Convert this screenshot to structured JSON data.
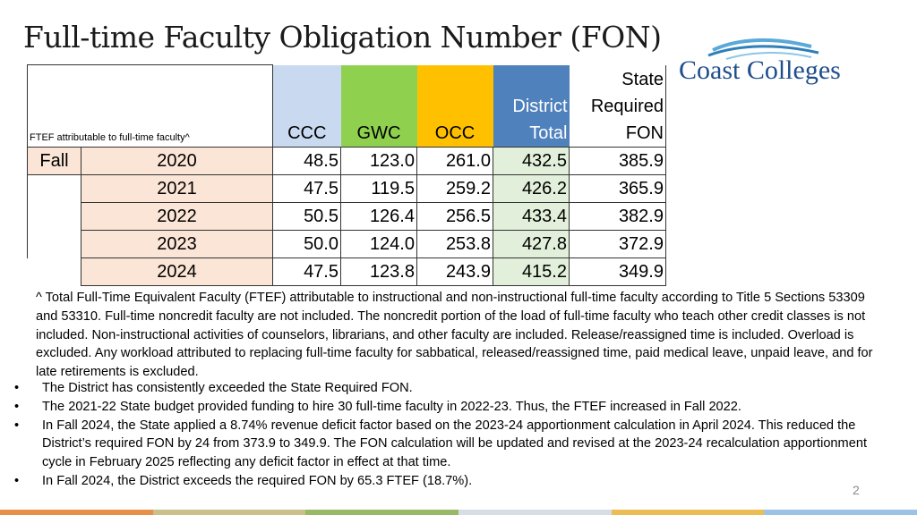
{
  "title": "Full-time Faculty Obligation Number (FON)",
  "logo_text": "Coast Colleges",
  "table": {
    "label_header": "FTEF attributable to full-time faculty^",
    "headers": {
      "ccc": "CCC",
      "gwc": "GWC",
      "occ": "OCC",
      "district": [
        "District",
        "Total"
      ],
      "state": [
        "State",
        "Required",
        "FON"
      ]
    },
    "term": "Fall",
    "rows": [
      {
        "year": "2020",
        "ccc": "48.5",
        "gwc": "123.0",
        "occ": "261.0",
        "district": "432.5",
        "state": "385.9"
      },
      {
        "year": "2021",
        "ccc": "47.5",
        "gwc": "119.5",
        "occ": "259.2",
        "district": "426.2",
        "state": "365.9"
      },
      {
        "year": "2022",
        "ccc": "50.5",
        "gwc": "126.4",
        "occ": "256.5",
        "district": "433.4",
        "state": "382.9"
      },
      {
        "year": "2023",
        "ccc": "50.0",
        "gwc": "124.0",
        "occ": "253.8",
        "district": "427.8",
        "state": "372.9"
      },
      {
        "year": "2024",
        "ccc": "47.5",
        "gwc": "123.8",
        "occ": "243.9",
        "district": "415.2",
        "state": "349.9"
      }
    ]
  },
  "footnote": "^ Total Full-Time Equivalent Faculty (FTEF) attributable to instructional and non-instructional full-time faculty according to Title 5 Sections 53309 and 53310. Full-time noncredit faculty are not included. The noncredit portion of the load of full-time faculty who teach other credit classes is not included. Non-instructional activities of counselors, librarians, and other faculty are included. Release/reassigned time is included. Overload is excluded. Any workload attributed to replacing full-time faculty for sabbatical, released/reassigned time, paid medical leave, unpaid leave, and for late retirements is excluded.",
  "bullets": [
    "The District has consistently exceeded the State Required FON.",
    "The 2021-22 State budget provided funding to hire 30 full-time faculty in 2022-23. Thus, the FTEF increased in Fall 2022.",
    "In Fall 2024, the State applied a 8.74% revenue deficit factor based on the 2023-24 apportionment calculation in April 2024. This reduced the District’s required FON by 24 from 373.9 to 349.9. The FON calculation will be updated and revised at the 2023-24 recalculation apportionment cycle in February 2025 reflecting any deficit factor in effect at that time.",
    "In Fall 2024, the District exceeds the required FON by 65.3 FTEF (18.7%)."
  ],
  "bullet_char": "•",
  "page_number": "2",
  "colors": {
    "ccc_header": "#c8d9f0",
    "gwc_header": "#8fd14f",
    "occ_header": "#ffc000",
    "district_header": "#4f81bd",
    "year_cells": "#fbe5d6",
    "district_cells": "#e2efda",
    "bottom_bar": [
      "#e7904a",
      "#c9c08a",
      "#9ab966",
      "#d6dde6",
      "#edbd55",
      "#9cc2e5"
    ]
  }
}
